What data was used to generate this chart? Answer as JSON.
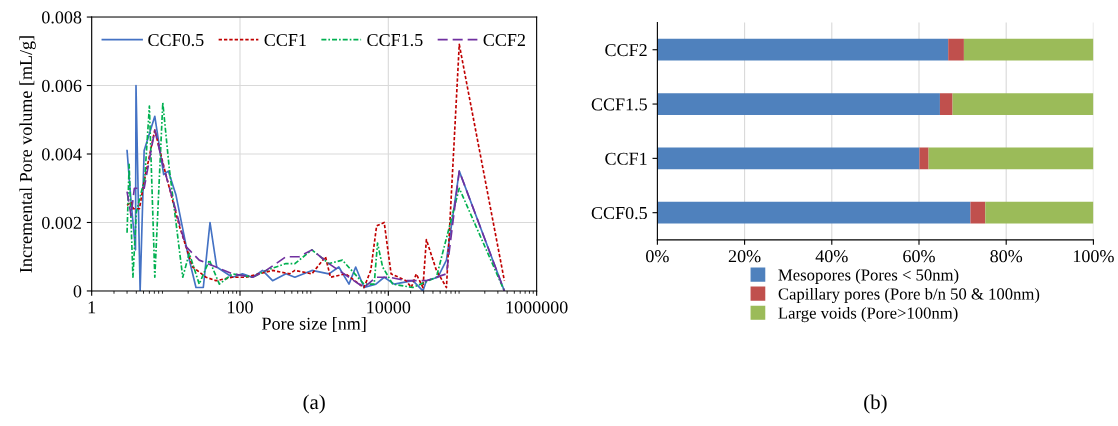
{
  "chart_data": [
    {
      "type": "line",
      "xlabel": "Pore size [nm]",
      "ylabel": "Incremental Pore volume [mL/g]",
      "log": "x",
      "xlim": [
        1,
        1000000
      ],
      "xticks": [
        1,
        100,
        10000,
        1000000
      ],
      "ylim": [
        0,
        0.008
      ],
      "yticks": [
        0,
        0.002,
        0.004,
        0.006,
        0.008
      ],
      "grid": true,
      "legend": "top",
      "annotations": [
        "(a)"
      ],
      "series": [
        {
          "name": "CCF0.5",
          "color": "#4472c4",
          "line_style": "solid",
          "x": [
            3.0,
            3.4,
            3.9,
            3.96,
            4.5,
            5.1,
            7.1,
            9.35,
            10.8,
            13.7,
            19.7,
            25.5,
            32,
            39.4,
            48.5,
            79,
            108,
            148,
            201,
            275,
            417,
            550,
            933,
            1580,
            2150,
            2950,
            3630,
            4700,
            6800,
            8800,
            12000,
            21400,
            29300,
            32600,
            46500,
            60800,
            90500,
            367000
          ],
          "values": [
            0.0041,
            0.0026,
            0.0012,
            0.006,
            0,
            0.0041,
            0.0051,
            0.0034,
            0.0035,
            0.0028,
            0.0011,
            0.0001,
            0.0001,
            0.002,
            0.0007,
            0.0004,
            0.0005,
            0.0004,
            0.0006,
            0.0003,
            0.0005,
            0.0004,
            0.0006,
            0.0005,
            0.0007,
            0.0002,
            0.0007,
            0.0001,
            0.0002,
            0.0004,
            0.0002,
            0.0003,
            0,
            0.0003,
            0.0004,
            0.0009,
            0.0035,
            0
          ]
        },
        {
          "name": "CCF1",
          "color": "#c00000",
          "line_style": "dotted",
          "x": [
            3.0,
            3.4,
            3.65,
            4.4,
            5.1,
            7.1,
            10,
            15.2,
            23,
            34.8,
            47.5,
            79,
            120,
            182,
            275,
            465,
            550,
            933,
            1420,
            1660,
            2650,
            4700,
            5800,
            6950,
            8800,
            10900,
            17400,
            20400,
            23800,
            29300,
            32600,
            44500,
            60800,
            90500,
            367000
          ],
          "values": [
            0.0025,
            0.0026,
            0.0024,
            0.0024,
            0.0032,
            0.0047,
            0.0034,
            0.0019,
            0.0007,
            0.0004,
            0.0003,
            0.0004,
            0.0004,
            0.0005,
            0.0006,
            0.0005,
            0.0006,
            0.0005,
            0.001,
            0.0004,
            0.0005,
            0.0001,
            0.0006,
            0.0019,
            0.002,
            0.0005,
            0.0003,
            0.0001,
            0.0005,
            0.0001,
            0.0015,
            0.0006,
            0.0001,
            0.0072,
            0.0003
          ]
        },
        {
          "name": "CCF1.5",
          "color": "#00b050",
          "line_style": "dashdot",
          "x": [
            3.0,
            3.2,
            3.6,
            4.0,
            5.2,
            6.0,
            7.1,
            9.1,
            11.1,
            16.9,
            20.7,
            28.2,
            38.6,
            52.7,
            79,
            148,
            225,
            417,
            550,
            933,
            1580,
            2400,
            4700,
            6450,
            7150,
            8380,
            11450,
            21400,
            44500,
            90500,
            367000
          ],
          "values": [
            0.0017,
            0.0037,
            0.0004,
            0.0023,
            0.0033,
            0.0054,
            0.0004,
            0.0055,
            0.0036,
            0.0004,
            0.0011,
            0.0002,
            0.0009,
            0.0002,
            0.0005,
            0.0004,
            0.0006,
            0.0008,
            0.0008,
            0.0012,
            0.0008,
            0.0009,
            0.0002,
            0.0002,
            0.0014,
            0.0007,
            0.0002,
            0.0001,
            0.0004,
            0.003,
            0
          ]
        },
        {
          "name": "CCF2",
          "color": "#7030a0",
          "line_style": "dashed",
          "x": [
            3.0,
            3.4,
            3.76,
            5.1,
            7.1,
            9.1,
            12.3,
            18.6,
            28.2,
            47.5,
            79,
            148,
            225,
            417,
            630,
            933,
            1580,
            2150,
            4700,
            6800,
            10300,
            17400,
            26400,
            32600,
            60800,
            90500,
            367000
          ],
          "values": [
            0.0029,
            0.0022,
            0.003,
            0.003,
            0.0047,
            0.0037,
            0.0027,
            0.0013,
            0.0009,
            0.0007,
            0.0005,
            0.0004,
            0.0006,
            0.001,
            0.001,
            0.0012,
            0.0008,
            0.0006,
            0.0001,
            0.0004,
            0.0004,
            0.0003,
            0.0003,
            0.0003,
            0.0005,
            0.0035,
            0
          ]
        }
      ]
    },
    {
      "type": "bar",
      "orientation": "horizontal",
      "stacked": true,
      "categories": [
        "CCF2",
        "CCF1.5",
        "CCF1",
        "CCF0.5"
      ],
      "xlim": [
        0,
        100
      ],
      "xticks": [
        {
          "value": 0,
          "label": "0%"
        },
        {
          "value": 20,
          "label": "20%"
        },
        {
          "value": 40,
          "label": "40%"
        },
        {
          "value": 60,
          "label": "60%"
        },
        {
          "value": 80,
          "label": "80%"
        },
        {
          "value": 100,
          "label": "100%"
        }
      ],
      "grid": "x",
      "legend": "bottom",
      "annotations": [
        "(b)"
      ],
      "series": [
        {
          "name": "Mesopores (Pores < 50nm)",
          "color": "#4f81bd",
          "values": [
            66.7,
            64.8,
            60.1,
            71.8
          ]
        },
        {
          "name": "Capillary pores (Pore b/n 50 & 100nm)",
          "color": "#c0504d",
          "values": [
            3.6,
            2.9,
            2.1,
            3.4
          ]
        },
        {
          "name": "Large voids (Pore>100nm)",
          "color": "#9bbb59",
          "values": [
            29.7,
            32.3,
            37.8,
            24.8
          ]
        }
      ]
    }
  ]
}
